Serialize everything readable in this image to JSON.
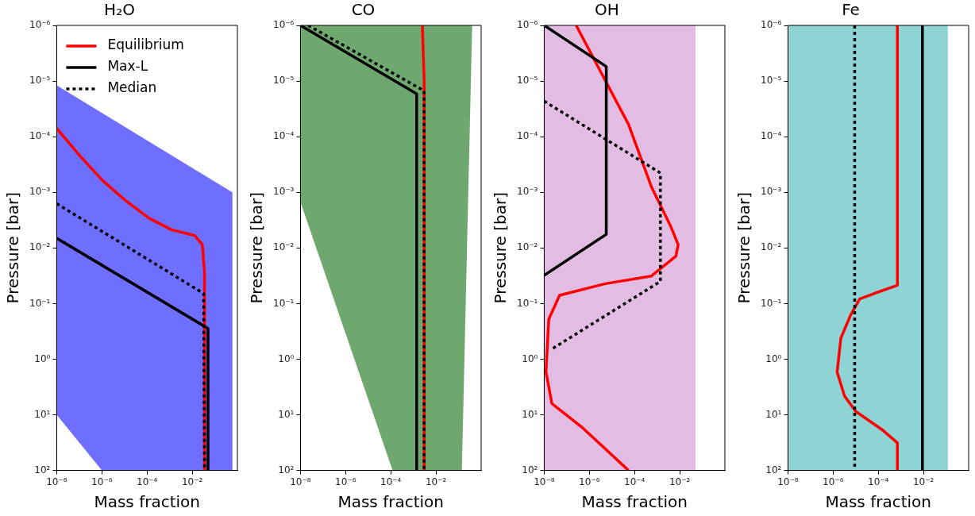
{
  "chart_data": [
    {
      "type": "line",
      "title": "H₂O",
      "xlabel": "Mass fraction",
      "ylabel": "Pressure [bar]",
      "log": "xy",
      "grid": false,
      "legend": "top left",
      "marker": "none",
      "xlim": [
        1e-08,
        1
      ],
      "ylim": [
        100,
        1e-06
      ],
      "xticks": [
        {
          "value": 1e-08,
          "label": "10⁻⁸"
        },
        {
          "value": 1e-06,
          "label": "10⁻⁶"
        },
        {
          "value": 0.0001,
          "label": "10⁻⁴"
        },
        {
          "value": 0.01,
          "label": "10⁻²"
        }
      ],
      "yticks": [
        {
          "value": 1e-06,
          "label": "10⁻⁶"
        },
        {
          "value": 1e-05,
          "label": "10⁻⁵"
        },
        {
          "value": 0.0001,
          "label": "10⁻⁴"
        },
        {
          "value": 0.001,
          "label": "10⁻³"
        },
        {
          "value": 0.01,
          "label": "10⁻²"
        },
        {
          "value": 0.1,
          "label": "10⁻¹"
        },
        {
          "value": 1,
          "label": "10⁰"
        },
        {
          "value": 10,
          "label": "10¹"
        },
        {
          "value": 100,
          "label": "10²"
        }
      ],
      "series": [
        {
          "type": "area",
          "color": "#6f6fff",
          "x": [
            1e-08,
            0.6,
            0.6,
            1e-06,
            1e-08,
            1e-08
          ],
          "values": [
            1.2e-05,
            0.001,
            100,
            100,
            10,
            1.2e-05
          ]
        },
        {
          "name": "Equilibrium",
          "color": "#ff0000",
          "line_style": "solid",
          "x": [
            1e-08,
            1.05e-07,
            1.1e-06,
            1.1e-05,
            0.00012,
            0.0012,
            0.013,
            0.028,
            0.035,
            0.035
          ],
          "values": [
            7.1e-05,
            0.00022,
            0.00062,
            0.0014,
            0.0029,
            0.0047,
            0.006,
            0.0087,
            0.027,
            100
          ]
        },
        {
          "name": "Max-L",
          "color": "#000000",
          "line_style": "solid",
          "x": [
            1e-08,
            0.05,
            0.05
          ],
          "values": [
            0.0067,
            0.28,
            100
          ]
        },
        {
          "name": "Median",
          "color": "#000000",
          "line_style": "dotted",
          "x": [
            1e-08,
            0.032,
            0.035
          ],
          "values": [
            0.0016,
            0.066,
            100
          ]
        }
      ]
    },
    {
      "type": "line",
      "title": "CO",
      "xlabel": "Mass fraction",
      "ylabel": "Pressure [bar]",
      "log": "xy",
      "grid": false,
      "marker": "none",
      "xlim": [
        1e-08,
        1
      ],
      "ylim": [
        100,
        1e-06
      ],
      "xticks": [
        {
          "value": 1e-08,
          "label": "10⁻⁸"
        },
        {
          "value": 1e-06,
          "label": "10⁻⁶"
        },
        {
          "value": 0.0001,
          "label": "10⁻⁴"
        },
        {
          "value": 0.01,
          "label": "10⁻²"
        }
      ],
      "yticks": [
        {
          "value": 1e-06,
          "label": "10⁻⁶"
        },
        {
          "value": 1e-05,
          "label": "10⁻⁵"
        },
        {
          "value": 0.0001,
          "label": "10⁻⁴"
        },
        {
          "value": 0.001,
          "label": "10⁻³"
        },
        {
          "value": 0.01,
          "label": "10⁻²"
        },
        {
          "value": 0.1,
          "label": "10⁻¹"
        },
        {
          "value": 1,
          "label": "10⁰"
        },
        {
          "value": 10,
          "label": "10¹"
        },
        {
          "value": 100,
          "label": "10²"
        }
      ],
      "series": [
        {
          "type": "area",
          "color": "#6fa86f",
          "x": [
            1e-08,
            0.4,
            0.14,
            0.00012,
            1e-08,
            1e-08
          ],
          "values": [
            1e-06,
            1e-06,
            100,
            100,
            0.0015,
            1e-06
          ]
        },
        {
          "color": "#ff0000",
          "line_style": "solid",
          "x": [
            0.0025,
            0.003,
            0.003
          ],
          "values": [
            1e-06,
            1e-05,
            100
          ]
        },
        {
          "color": "#000000",
          "line_style": "solid",
          "x": [
            1e-08,
            0.0014,
            0.0014
          ],
          "values": [
            1e-06,
            1.7e-05,
            100
          ]
        },
        {
          "color": "#000000",
          "line_style": "dotted",
          "x": [
            2.2e-08,
            0.003,
            0.003
          ],
          "values": [
            1e-06,
            1.5e-05,
            100
          ]
        }
      ]
    },
    {
      "type": "line",
      "title": "OH",
      "xlabel": "Mass fraction",
      "ylabel": "Pressure [bar]",
      "log": "xy",
      "grid": false,
      "marker": "none",
      "xlim": [
        1e-08,
        1
      ],
      "ylim": [
        100,
        1e-06
      ],
      "xticks": [
        {
          "value": 1e-08,
          "label": "10⁻⁸"
        },
        {
          "value": 1e-06,
          "label": "10⁻⁶"
        },
        {
          "value": 0.0001,
          "label": "10⁻⁴"
        },
        {
          "value": 0.01,
          "label": "10⁻²"
        }
      ],
      "yticks": [
        {
          "value": 1e-06,
          "label": "10⁻⁶"
        },
        {
          "value": 1e-05,
          "label": "10⁻⁵"
        },
        {
          "value": 0.0001,
          "label": "10⁻⁴"
        },
        {
          "value": 0.001,
          "label": "10⁻³"
        },
        {
          "value": 0.01,
          "label": "10⁻²"
        },
        {
          "value": 0.1,
          "label": "10⁻¹"
        },
        {
          "value": 1,
          "label": "10⁰"
        },
        {
          "value": 10,
          "label": "10¹"
        },
        {
          "value": 100,
          "label": "10²"
        }
      ],
      "series": [
        {
          "type": "area",
          "color": "#e2bce2",
          "x": [
            0.05,
            0.05,
            0.0001,
            1e-08,
            1e-08,
            1e-08,
            1e-08
          ],
          "values": [
            100,
            1e-06,
            1e-06,
            1e-06,
            0.001,
            10,
            100
          ]
        },
        {
          "color": "#ff0000",
          "line_style": "solid",
          "x": [
            2.6e-07,
            5.4e-05,
            0.00056,
            0.0039,
            0.0085,
            0.0068,
            0.00056,
            5.1e-06,
            4.8e-08,
            1.6e-08,
            1.2e-08,
            2.2e-08,
            4.9e-07,
            5.4e-05
          ],
          "values": [
            1e-06,
            6e-05,
            0.0008,
            0.004,
            0.0087,
            0.014,
            0.032,
            0.044,
            0.071,
            0.19,
            1.7,
            6.3,
            17,
            100
          ]
        },
        {
          "color": "#000000",
          "line_style": "solid",
          "x": [
            1e-08,
            5.6e-06,
            5.6e-06,
            1e-08
          ],
          "values": [
            1e-06,
            5.5e-06,
            0.0057,
            0.031
          ]
        },
        {
          "color": "#000000",
          "line_style": "dotted",
          "x": [
            1e-08,
            0.0014,
            0.0014,
            1.9e-08
          ],
          "values": [
            2.3e-05,
            0.00045,
            0.04,
            0.68
          ]
        }
      ]
    },
    {
      "type": "line",
      "title": "Fe",
      "xlabel": "Mass fraction",
      "ylabel": "Pressure [bar]",
      "log": "xy",
      "grid": false,
      "marker": "none",
      "xlim": [
        1e-08,
        1
      ],
      "ylim": [
        100,
        1e-06
      ],
      "xticks": [
        {
          "value": 1e-08,
          "label": "10⁻⁸"
        },
        {
          "value": 1e-06,
          "label": "10⁻⁶"
        },
        {
          "value": 0.0001,
          "label": "10⁻⁴"
        },
        {
          "value": 0.01,
          "label": "10⁻²"
        }
      ],
      "yticks": [
        {
          "value": 1e-06,
          "label": "10⁻⁶"
        },
        {
          "value": 1e-05,
          "label": "10⁻⁵"
        },
        {
          "value": 0.0001,
          "label": "10⁻⁴"
        },
        {
          "value": 0.001,
          "label": "10⁻³"
        },
        {
          "value": 0.01,
          "label": "10⁻²"
        },
        {
          "value": 0.1,
          "label": "10⁻¹"
        },
        {
          "value": 1,
          "label": "10⁰"
        },
        {
          "value": 10,
          "label": "10¹"
        },
        {
          "value": 100,
          "label": "10²"
        }
      ],
      "series": [
        {
          "type": "area",
          "color": "#8fd4d4",
          "x": [
            1e-08,
            0.12,
            0.12,
            1e-08,
            1e-08
          ],
          "values": [
            1e-06,
            1e-06,
            100,
            100,
            1e-06
          ]
        },
        {
          "color": "#ff0000",
          "line_style": "solid",
          "x": [
            0.0007,
            0.0007,
            7.2e-05,
            1.5e-05,
            6e-06,
            2.2e-06,
            1.5e-06,
            3.2e-06,
            1e-05,
            0.00016,
            0.0007,
            0.0007
          ],
          "values": [
            1e-06,
            0.047,
            0.065,
            0.083,
            0.16,
            0.42,
            1.7,
            4.6,
            8.7,
            19,
            32,
            100
          ]
        },
        {
          "color": "#000000",
          "line_style": "solid",
          "x": [
            0.009,
            0.009
          ],
          "values": [
            1e-06,
            100
          ]
        },
        {
          "color": "#000000",
          "line_style": "dotted",
          "x": [
            9e-06,
            9e-06
          ],
          "values": [
            1e-06,
            100
          ]
        }
      ]
    }
  ]
}
